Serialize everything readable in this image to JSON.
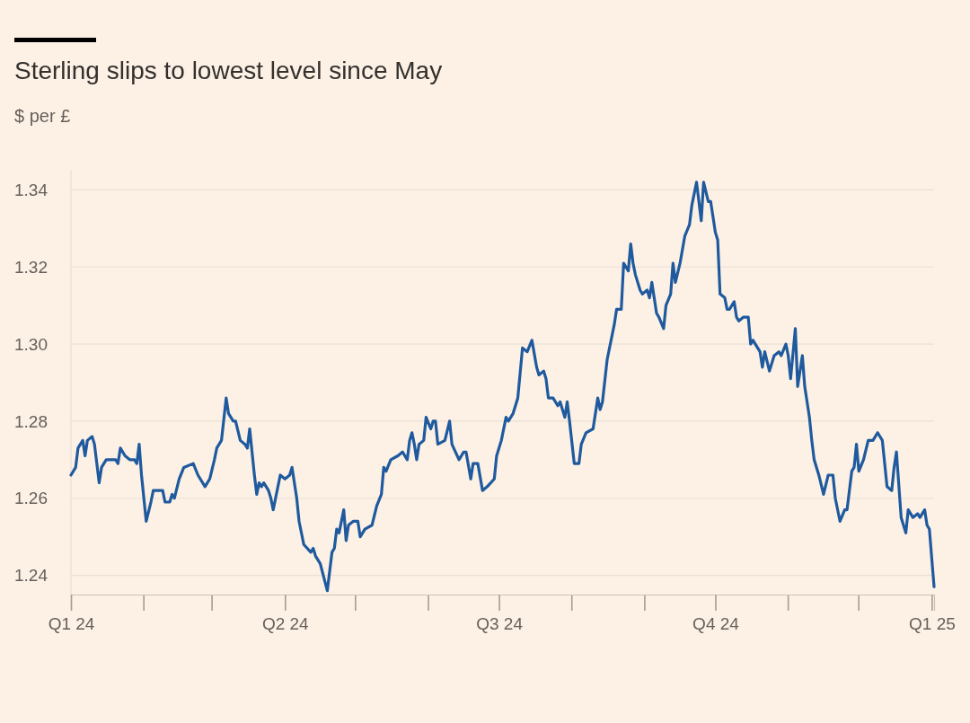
{
  "chart_data": {
    "type": "line",
    "title": "Sterling slips to lowest level since May",
    "ylabel": "$ per £",
    "x": [
      "2024-01-01",
      "2024-01-03",
      "2024-01-04",
      "2024-01-06",
      "2024-01-07",
      "2024-01-08",
      "2024-01-10",
      "2024-01-11",
      "2024-01-13",
      "2024-01-14",
      "2024-01-16",
      "2024-01-18",
      "2024-01-20",
      "2024-01-21",
      "2024-01-22",
      "2024-01-24",
      "2024-01-26",
      "2024-01-28",
      "2024-01-29",
      "2024-01-30",
      "2024-01-31",
      "2024-02-02",
      "2024-02-04",
      "2024-02-05",
      "2024-02-07",
      "2024-02-09",
      "2024-02-10",
      "2024-02-12",
      "2024-02-13",
      "2024-02-14",
      "2024-02-16",
      "2024-02-18",
      "2024-02-22",
      "2024-02-24",
      "2024-02-27",
      "2024-02-29",
      "2024-03-02",
      "2024-03-03",
      "2024-03-05",
      "2024-03-07",
      "2024-03-08",
      "2024-03-10",
      "2024-03-11",
      "2024-03-13",
      "2024-03-15",
      "2024-03-16",
      "2024-03-17",
      "2024-03-19",
      "2024-03-20",
      "2024-03-21",
      "2024-03-22",
      "2024-03-23",
      "2024-03-25",
      "2024-03-26",
      "2024-03-27",
      "2024-03-28",
      "2024-03-30",
      "2024-04-01",
      "2024-04-03",
      "2024-04-04",
      "2024-04-06",
      "2024-04-07",
      "2024-04-09",
      "2024-04-12",
      "2024-04-13",
      "2024-04-14",
      "2024-04-16",
      "2024-04-19",
      "2024-04-21",
      "2024-04-22",
      "2024-04-23",
      "2024-04-24",
      "2024-04-26",
      "2024-04-27",
      "2024-04-28",
      "2024-04-30",
      "2024-05-02",
      "2024-05-03",
      "2024-05-05",
      "2024-05-08",
      "2024-05-10",
      "2024-05-12",
      "2024-05-13",
      "2024-05-14",
      "2024-05-16",
      "2024-05-19",
      "2024-05-21",
      "2024-05-23",
      "2024-05-24",
      "2024-05-25",
      "2024-05-26",
      "2024-05-27",
      "2024-05-28",
      "2024-05-30",
      "2024-05-31",
      "2024-06-02",
      "2024-06-03",
      "2024-06-04",
      "2024-06-05",
      "2024-06-08",
      "2024-06-10",
      "2024-06-11",
      "2024-06-14",
      "2024-06-16",
      "2024-06-17",
      "2024-06-19",
      "2024-06-20",
      "2024-06-22",
      "2024-06-24",
      "2024-06-26",
      "2024-06-29",
      "2024-06-30",
      "2024-07-02",
      "2024-07-04",
      "2024-07-05",
      "2024-07-07",
      "2024-07-09",
      "2024-07-11",
      "2024-07-13",
      "2024-07-15",
      "2024-07-17",
      "2024-07-18",
      "2024-07-20",
      "2024-07-21",
      "2024-07-22",
      "2024-07-24",
      "2024-07-26",
      "2024-07-27",
      "2024-07-29",
      "2024-07-30",
      "2024-07-31",
      "2024-08-02",
      "2024-08-04",
      "2024-08-05",
      "2024-08-07",
      "2024-08-10",
      "2024-08-12",
      "2024-08-13",
      "2024-08-14",
      "2024-08-16",
      "2024-08-19",
      "2024-08-20",
      "2024-08-22",
      "2024-08-23",
      "2024-08-25",
      "2024-08-26",
      "2024-08-27",
      "2024-08-28",
      "2024-08-30",
      "2024-08-31",
      "2024-09-02",
      "2024-09-03",
      "2024-09-04",
      "2024-09-06",
      "2024-09-07",
      "2024-09-09",
      "2024-09-10",
      "2024-09-12",
      "2024-09-13",
      "2024-09-14",
      "2024-09-16",
      "2024-09-18",
      "2024-09-20",
      "2024-09-21",
      "2024-09-23",
      "2024-09-25",
      "2024-09-26",
      "2024-09-28",
      "2024-09-29",
      "2024-10-01",
      "2024-10-02",
      "2024-10-03",
      "2024-10-05",
      "2024-10-06",
      "2024-10-07",
      "2024-10-09",
      "2024-10-10",
      "2024-10-11",
      "2024-10-13",
      "2024-10-15",
      "2024-10-16",
      "2024-10-17",
      "2024-10-20",
      "2024-10-21",
      "2024-10-22",
      "2024-10-24",
      "2024-10-26",
      "2024-10-28",
      "2024-10-29",
      "2024-10-31",
      "2024-11-01",
      "2024-11-02",
      "2024-11-04",
      "2024-11-05",
      "2024-11-07",
      "2024-11-08",
      "2024-11-10",
      "2024-11-11",
      "2024-11-12",
      "2024-11-14",
      "2024-11-16",
      "2024-11-18",
      "2024-11-20",
      "2024-11-21",
      "2024-11-23",
      "2024-11-25",
      "2024-11-26",
      "2024-11-28",
      "2024-11-29",
      "2024-11-30",
      "2024-12-01",
      "2024-12-03",
      "2024-12-05",
      "2024-12-07",
      "2024-12-09",
      "2024-12-11",
      "2024-12-13",
      "2024-12-15",
      "2024-12-16",
      "2024-12-17",
      "2024-12-19",
      "2024-12-21",
      "2024-12-22",
      "2024-12-24",
      "2024-12-26",
      "2024-12-27",
      "2024-12-29",
      "2024-12-30",
      "2024-12-31",
      "2025-01-02"
    ],
    "series": [
      {
        "color": "#1f5a9e",
        "values": [
          1.266,
          1.268,
          1.273,
          1.275,
          1.271,
          1.275,
          1.276,
          1.274,
          1.264,
          1.268,
          1.27,
          1.27,
          1.27,
          1.269,
          1.273,
          1.271,
          1.27,
          1.27,
          1.269,
          1.274,
          1.266,
          1.254,
          1.259,
          1.262,
          1.262,
          1.262,
          1.259,
          1.259,
          1.261,
          1.26,
          1.265,
          1.268,
          1.269,
          1.266,
          1.263,
          1.265,
          1.27,
          1.273,
          1.275,
          1.286,
          1.282,
          1.28,
          1.28,
          1.275,
          1.274,
          1.273,
          1.278,
          1.266,
          1.261,
          1.264,
          1.263,
          1.264,
          1.262,
          1.26,
          1.257,
          1.26,
          1.266,
          1.265,
          1.266,
          1.268,
          1.26,
          1.254,
          1.248,
          1.246,
          1.247,
          1.245,
          1.243,
          1.236,
          1.246,
          1.247,
          1.252,
          1.251,
          1.257,
          1.249,
          1.253,
          1.254,
          1.254,
          1.25,
          1.252,
          1.253,
          1.258,
          1.261,
          1.268,
          1.267,
          1.27,
          1.271,
          1.272,
          1.27,
          1.275,
          1.277,
          1.274,
          1.27,
          1.274,
          1.275,
          1.281,
          1.278,
          1.28,
          1.28,
          1.274,
          1.275,
          1.28,
          1.274,
          1.27,
          1.272,
          1.272,
          1.265,
          1.269,
          1.269,
          1.262,
          1.263,
          1.265,
          1.271,
          1.275,
          1.281,
          1.28,
          1.282,
          1.286,
          1.299,
          1.298,
          1.301,
          1.294,
          1.292,
          1.293,
          1.291,
          1.286,
          1.286,
          1.284,
          1.285,
          1.281,
          1.285,
          1.28,
          1.269,
          1.269,
          1.274,
          1.277,
          1.278,
          1.286,
          1.283,
          1.285,
          1.296,
          1.305,
          1.309,
          1.309,
          1.321,
          1.319,
          1.326,
          1.321,
          1.318,
          1.314,
          1.313,
          1.314,
          1.312,
          1.316,
          1.308,
          1.307,
          1.304,
          1.31,
          1.313,
          1.321,
          1.316,
          1.321,
          1.328,
          1.331,
          1.336,
          1.342,
          1.332,
          1.342,
          1.337,
          1.337,
          1.329,
          1.327,
          1.313,
          1.312,
          1.309,
          1.309,
          1.311,
          1.307,
          1.306,
          1.307,
          1.307,
          1.3,
          1.301,
          1.298,
          1.294,
          1.298,
          1.293,
          1.297,
          1.298,
          1.297,
          1.3,
          1.297,
          1.291,
          1.304,
          1.289,
          1.297,
          1.289,
          1.281,
          1.275,
          1.27,
          1.266,
          1.261,
          1.266,
          1.266,
          1.26,
          1.254,
          1.257,
          1.257,
          1.267,
          1.268,
          1.274,
          1.267,
          1.27,
          1.275,
          1.275,
          1.277,
          1.275,
          1.263,
          1.262,
          1.268,
          1.272,
          1.255,
          1.251,
          1.257,
          1.255,
          1.256,
          1.255,
          1.257,
          1.253,
          1.252,
          1.237
        ]
      }
    ],
    "xlim": [
      "2024-01-01",
      "2025-01-02"
    ],
    "xticks": [
      {
        "value": "2024-01-01",
        "label": "Q1 24"
      },
      {
        "value": "2024-04-01",
        "label": "Q2 24"
      },
      {
        "value": "2024-07-01",
        "label": "Q3 24"
      },
      {
        "value": "2024-10-01",
        "label": "Q4 24"
      },
      {
        "value": "2025-01-01",
        "label": "Q1 25"
      }
    ],
    "ylim": [
      1.235,
      1.345
    ],
    "yticks": [
      1.24,
      1.26,
      1.28,
      {
        "value": 1.3,
        "label": "1.30"
      },
      1.32,
      1.34
    ],
    "grid": "y",
    "line_style": "solid",
    "marker": "none"
  }
}
